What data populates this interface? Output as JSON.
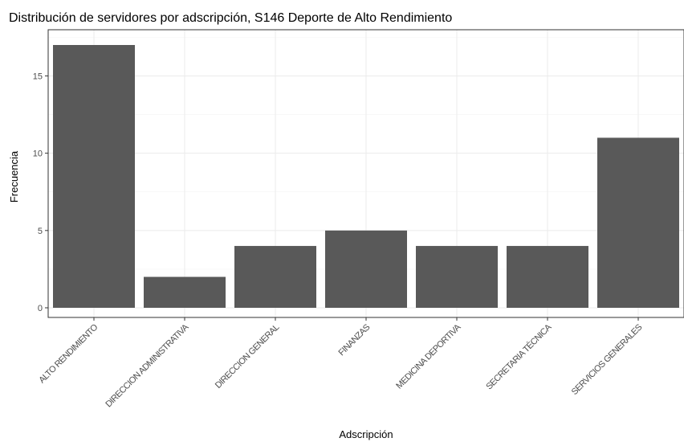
{
  "chart_data": {
    "type": "bar",
    "title": "Distribución de servidores por adscripción, S146 Deporte de Alto Rendimiento",
    "xlabel": "Adscripción",
    "ylabel": "Frecuencia",
    "categories": [
      "ALTO RENDIMIENTO",
      "DIRECCION ADMINISTRATIVA",
      "DIRECCION GENERAL",
      "FINANZAS",
      "MEDICINA DEPORTIVA",
      "SECRETARIA TÉCNICA",
      "SERVICIOS GENERALES"
    ],
    "values": [
      17,
      2,
      4,
      5,
      4,
      4,
      11
    ],
    "y_ticks": [
      0,
      5,
      10,
      15
    ],
    "ylim": [
      0,
      17.85
    ],
    "bar_color": "#595959",
    "grid": true,
    "theme": "bw"
  }
}
